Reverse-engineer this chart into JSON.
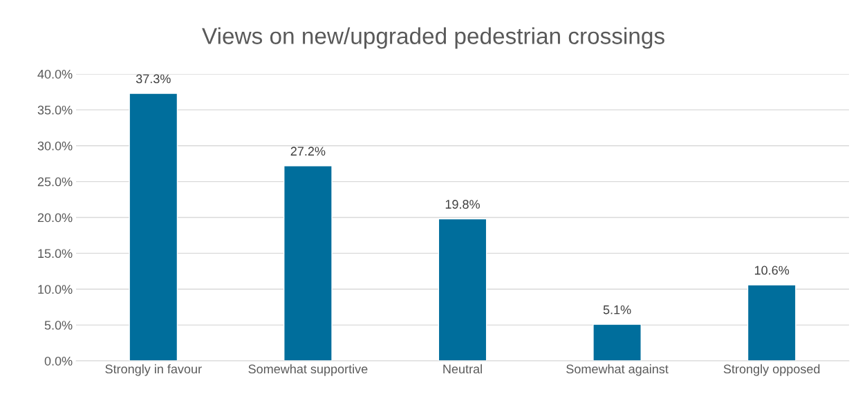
{
  "chart_data": {
    "type": "bar",
    "title": "Views on new/upgraded pedestrian crossings",
    "categories": [
      "Strongly in favour",
      "Somewhat supportive",
      "Neutral",
      "Somewhat against",
      "Strongly opposed"
    ],
    "values": [
      37.3,
      27.2,
      19.8,
      5.1,
      10.6
    ],
    "value_labels": [
      "37.3%",
      "27.2%",
      "19.8%",
      "5.1%",
      "10.6%"
    ],
    "color": "#006e9c",
    "ylim": [
      0,
      40
    ],
    "yticks": [
      {
        "value": 0,
        "label": "0.0%"
      },
      {
        "value": 5,
        "label": "5.0%"
      },
      {
        "value": 10,
        "label": "10.0%"
      },
      {
        "value": 15,
        "label": "15.0%"
      },
      {
        "value": 20,
        "label": "20.0%"
      },
      {
        "value": 25,
        "label": "25.0%"
      },
      {
        "value": 30,
        "label": "30.0%"
      },
      {
        "value": 35,
        "label": "35.0%"
      },
      {
        "value": 40,
        "label": "40.0%"
      }
    ],
    "grid": "y",
    "legend": false
  }
}
